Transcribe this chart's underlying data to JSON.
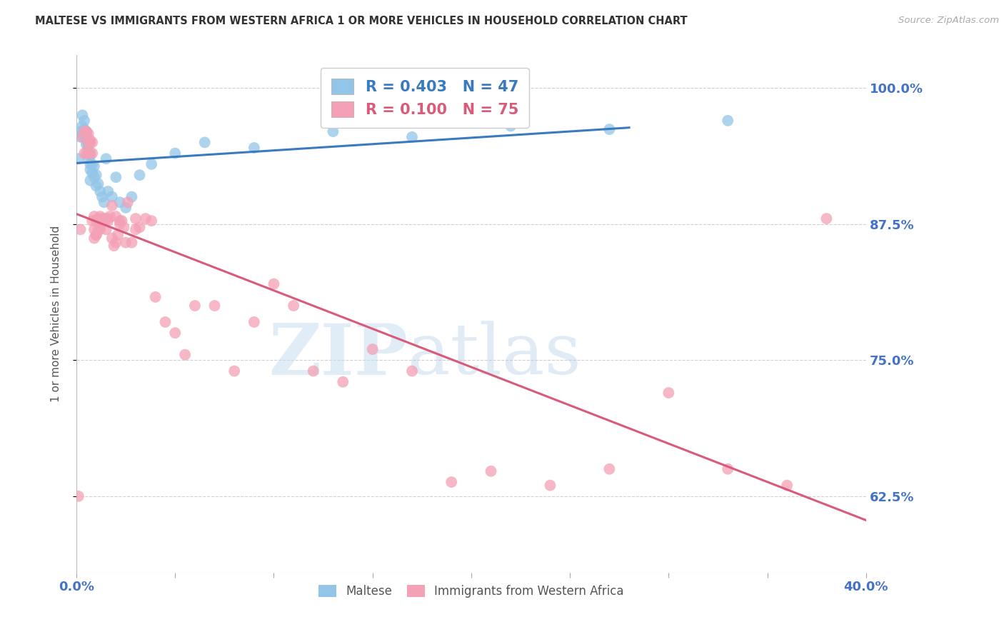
{
  "title": "MALTESE VS IMMIGRANTS FROM WESTERN AFRICA 1 OR MORE VEHICLES IN HOUSEHOLD CORRELATION CHART",
  "source": "Source: ZipAtlas.com",
  "ylabel": "1 or more Vehicles in Household",
  "xlim": [
    0.0,
    0.4
  ],
  "ylim": [
    0.555,
    1.03
  ],
  "yticks": [
    0.625,
    0.75,
    0.875,
    1.0
  ],
  "xticks": [
    0.0,
    0.05,
    0.1,
    0.15,
    0.2,
    0.25,
    0.3,
    0.35,
    0.4
  ],
  "ytick_labels": [
    "62.5%",
    "75.0%",
    "87.5%",
    "100.0%"
  ],
  "legend_labels": [
    "Maltese",
    "Immigrants from Western Africa"
  ],
  "blue_R": 0.403,
  "blue_N": 47,
  "pink_R": 0.1,
  "pink_N": 75,
  "blue_color": "#93c5e8",
  "pink_color": "#f4a0b5",
  "blue_line_color": "#3a7abf",
  "pink_line_color": "#d95b7a",
  "watermark_zip": "ZIP",
  "watermark_atlas": "atlas",
  "background_color": "#ffffff",
  "title_color": "#333333",
  "axis_label_color": "#555555",
  "tick_color": "#4472C4",
  "grid_color": "#d0d0d0",
  "blue_x": [
    0.001,
    0.002,
    0.002,
    0.003,
    0.003,
    0.003,
    0.004,
    0.004,
    0.005,
    0.005,
    0.005,
    0.005,
    0.006,
    0.006,
    0.006,
    0.006,
    0.007,
    0.007,
    0.007,
    0.007,
    0.008,
    0.008,
    0.009,
    0.009,
    0.01,
    0.01,
    0.011,
    0.012,
    0.013,
    0.014,
    0.015,
    0.016,
    0.018,
    0.02,
    0.022,
    0.025,
    0.028,
    0.032,
    0.038,
    0.05,
    0.065,
    0.09,
    0.13,
    0.17,
    0.22,
    0.27,
    0.33
  ],
  "blue_y": [
    0.935,
    0.96,
    0.955,
    0.975,
    0.965,
    0.958,
    0.97,
    0.962,
    0.96,
    0.952,
    0.958,
    0.948,
    0.952,
    0.945,
    0.94,
    0.935,
    0.938,
    0.93,
    0.925,
    0.915,
    0.93,
    0.922,
    0.928,
    0.918,
    0.92,
    0.91,
    0.912,
    0.905,
    0.9,
    0.895,
    0.935,
    0.905,
    0.9,
    0.918,
    0.895,
    0.89,
    0.9,
    0.92,
    0.93,
    0.94,
    0.95,
    0.945,
    0.96,
    0.955,
    0.965,
    0.962,
    0.97
  ],
  "pink_x": [
    0.001,
    0.002,
    0.003,
    0.004,
    0.004,
    0.005,
    0.005,
    0.006,
    0.006,
    0.007,
    0.007,
    0.008,
    0.008,
    0.009,
    0.009,
    0.01,
    0.01,
    0.011,
    0.011,
    0.012,
    0.012,
    0.013,
    0.014,
    0.015,
    0.015,
    0.016,
    0.017,
    0.018,
    0.019,
    0.02,
    0.021,
    0.022,
    0.023,
    0.024,
    0.026,
    0.028,
    0.03,
    0.032,
    0.035,
    0.038,
    0.04,
    0.045,
    0.05,
    0.055,
    0.06,
    0.07,
    0.08,
    0.09,
    0.1,
    0.11,
    0.12,
    0.135,
    0.15,
    0.17,
    0.19,
    0.21,
    0.24,
    0.27,
    0.3,
    0.33,
    0.36,
    0.02,
    0.025,
    0.03,
    0.012,
    0.008,
    0.015,
    0.018,
    0.022,
    0.007,
    0.01,
    0.013,
    0.016,
    0.009,
    0.38
  ],
  "pink_y": [
    0.625,
    0.87,
    0.955,
    0.96,
    0.94,
    0.96,
    0.94,
    0.958,
    0.948,
    0.95,
    0.94,
    0.95,
    0.94,
    0.882,
    0.87,
    0.878,
    0.865,
    0.88,
    0.87,
    0.882,
    0.873,
    0.88,
    0.878,
    0.88,
    0.87,
    0.878,
    0.882,
    0.892,
    0.855,
    0.882,
    0.865,
    0.878,
    0.878,
    0.872,
    0.895,
    0.858,
    0.87,
    0.872,
    0.88,
    0.878,
    0.808,
    0.785,
    0.775,
    0.755,
    0.8,
    0.8,
    0.74,
    0.785,
    0.82,
    0.8,
    0.74,
    0.73,
    0.76,
    0.74,
    0.638,
    0.648,
    0.635,
    0.65,
    0.72,
    0.65,
    0.635,
    0.858,
    0.858,
    0.88,
    0.87,
    0.878,
    0.88,
    0.862,
    0.875,
    0.952,
    0.865,
    0.88,
    0.88,
    0.862,
    0.88
  ]
}
